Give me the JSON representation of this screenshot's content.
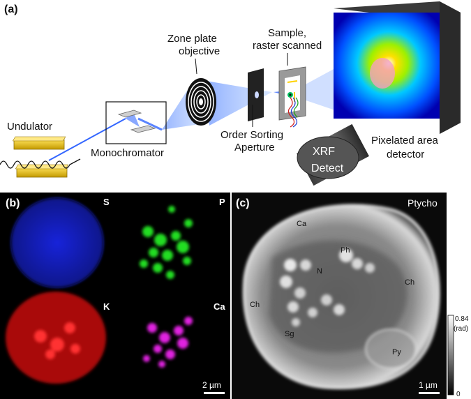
{
  "panel_a": {
    "letter": "(a)",
    "undulator": "Undulator",
    "monochromator": "Monochromator",
    "zone_plate": [
      "Zone plate",
      "objective"
    ],
    "sample": [
      "Sample,",
      "raster scanned"
    ],
    "osa": [
      "Order Sorting",
      "Aperture"
    ],
    "xrf": [
      "XRF",
      "Detect"
    ],
    "detector": [
      "Pixelated area",
      "detector"
    ]
  },
  "panel_b": {
    "letter": "(b)",
    "maps": [
      {
        "label": "S",
        "color": "#1a2aff"
      },
      {
        "label": "P",
        "color": "#22dd22"
      },
      {
        "label": "K",
        "color": "#ff1a1a"
      },
      {
        "label": "Ca",
        "color": "#e020e0"
      }
    ],
    "scale_bar": "2 µm"
  },
  "panel_c": {
    "letter": "(c)",
    "title": "Ptycho",
    "labels": [
      "Ca",
      "Ph",
      "N",
      "Ch",
      "Ch",
      "Sg",
      "Py"
    ],
    "scale_bar": "1 µm",
    "colorbar": {
      "max": "0.84",
      "unit": "(rad)",
      "min": "0"
    }
  }
}
